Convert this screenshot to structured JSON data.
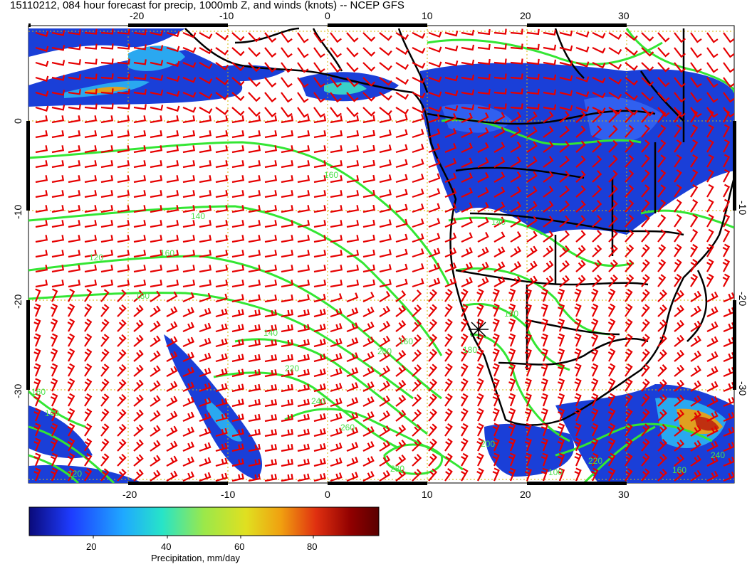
{
  "title": "15110212, 084 hour forecast for precip, 1000mb Z, and winds (knots) -- NCEP GFS",
  "map": {
    "lon_ticks_bottom": [
      "-20",
      "-10",
      "0",
      "10",
      "20",
      "30"
    ],
    "lon_ticks_top": [
      "-20",
      "-10",
      "0",
      "10",
      "20",
      "30"
    ],
    "lat_ticks_left": [
      "0",
      "-10",
      "-20",
      "-30"
    ],
    "lat_ticks_right": [
      "-10",
      "-20",
      "-30"
    ],
    "contour_labels": [
      "160",
      "140",
      "160",
      "180",
      "120",
      "140",
      "160",
      "180",
      "200",
      "220",
      "240",
      "260",
      "280",
      "220",
      "160",
      "140",
      "120",
      "140",
      "120",
      "100",
      "160",
      "200",
      "240"
    ],
    "colors": {
      "contour": "#33e633",
      "barb": "#e60000",
      "coast": "#000000",
      "grid": "#d4b400"
    }
  },
  "colorbar": {
    "ticks": [
      "20",
      "40",
      "60",
      "80"
    ],
    "label": "Precipitation, mm/day",
    "colors": [
      "#0a0a7a",
      "#1e3cff",
      "#1fa9ff",
      "#27e4c8",
      "#9be84a",
      "#e0e020",
      "#f0a010",
      "#e03010",
      "#900000",
      "#5a0000"
    ]
  }
}
